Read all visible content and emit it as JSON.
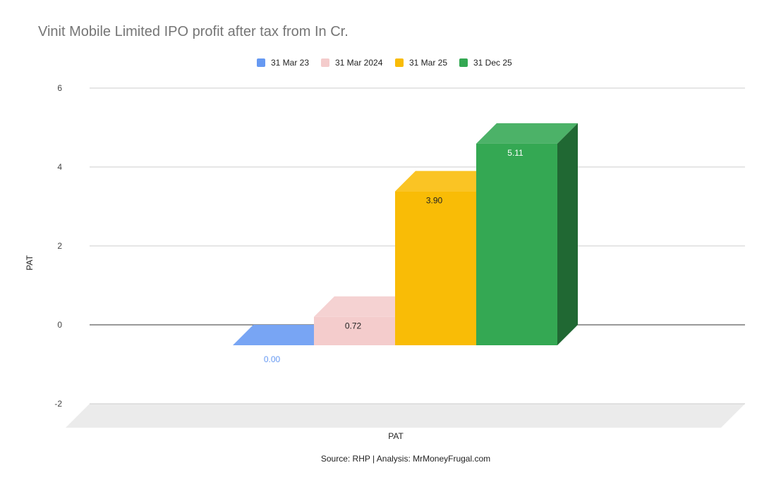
{
  "chart_data": {
    "type": "bar",
    "title": "Vinit Mobile Limited IPO profit after tax from In Cr.",
    "xlabel": "PAT",
    "ylabel": "PAT",
    "categories": [
      "PAT"
    ],
    "series": [
      {
        "name": "31 Mar 23",
        "values": [
          0.0
        ],
        "label": "0.00",
        "color": "#6699f2"
      },
      {
        "name": "31 Mar 2024",
        "values": [
          0.72
        ],
        "label": "0.72",
        "color": "#f4cccc"
      },
      {
        "name": "31 Mar 25",
        "values": [
          3.9
        ],
        "label": "3.90",
        "color": "#f9bc06"
      },
      {
        "name": "31 Dec 25",
        "values": [
          5.11
        ],
        "label": "5.11",
        "color": "#34a853"
      }
    ],
    "ylim": [
      -2,
      6
    ],
    "yticks": [
      "6",
      "4",
      "2",
      "0",
      "-2"
    ],
    "grid": true,
    "legend_position": "top",
    "three_d": true
  },
  "footer": {
    "source": "Source: RHP | Analysis: MrMoneyFrugal.com"
  }
}
